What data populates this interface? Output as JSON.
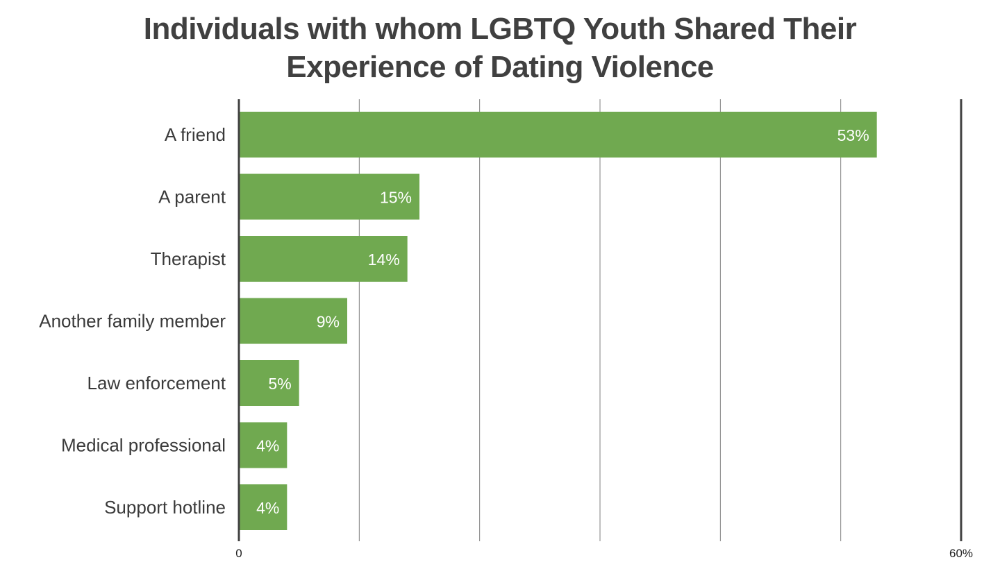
{
  "chart_data": {
    "type": "bar",
    "orientation": "horizontal",
    "title": "Individuals with whom LGBTQ Youth Shared Their Experience of Dating Violence",
    "categories": [
      "A friend",
      "A parent",
      "Therapist",
      "Another family member",
      "Law enforcement",
      "Medical professional",
      "Support hotline"
    ],
    "values": [
      53,
      15,
      14,
      9,
      5,
      4,
      4
    ],
    "value_labels": [
      "53%",
      "15%",
      "14%",
      "9%",
      "5%",
      "4%",
      "4%"
    ],
    "xlim": [
      0,
      60
    ],
    "x_tick_labels": [
      "0",
      "60%"
    ],
    "xlabel": "",
    "ylabel": "",
    "grid": true,
    "legend": "none",
    "bar_color": "#70a950",
    "grid_color": "#7f7f7f",
    "axis_color": "#404040"
  }
}
